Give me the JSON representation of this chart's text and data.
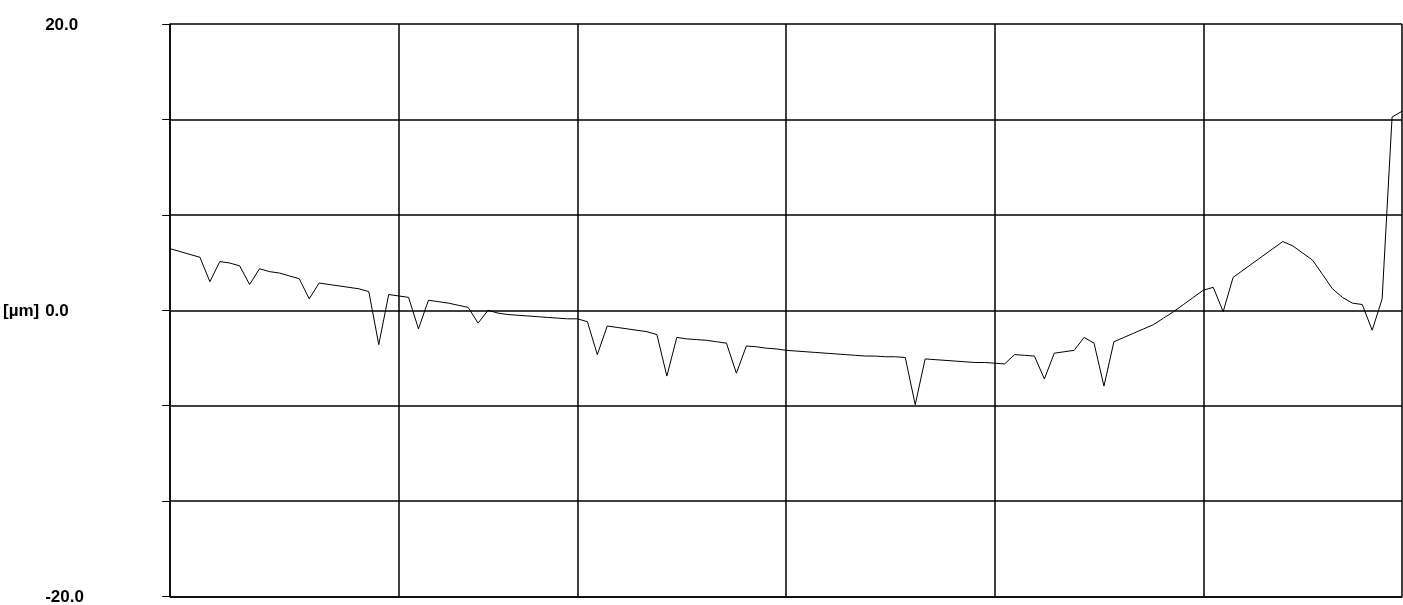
{
  "chart_data": {
    "type": "line",
    "ylabel": "[µm]",
    "grid": true,
    "marker": "none",
    "line_style": "solid",
    "tick_labels": "y",
    "categories": [
      null,
      null,
      null,
      null,
      null,
      null,
      null,
      null,
      null,
      null,
      null,
      null,
      null,
      null,
      null,
      null,
      null,
      null,
      null,
      null,
      null,
      null,
      null,
      null,
      null,
      null,
      null,
      null,
      null,
      null,
      null,
      null,
      null,
      null,
      null,
      null,
      null,
      null,
      null,
      null,
      null,
      null,
      null,
      null,
      null,
      null,
      null,
      null,
      null,
      null,
      null,
      null,
      null,
      null,
      null,
      null,
      null,
      null,
      null,
      null,
      null,
      null,
      null,
      null,
      null,
      null,
      null,
      null,
      null,
      null,
      null,
      null,
      null,
      null,
      null,
      null,
      null,
      null,
      null,
      null,
      null,
      null,
      null,
      null,
      null,
      null,
      null,
      null,
      null,
      null,
      null,
      null,
      null,
      null,
      null,
      null,
      null,
      null,
      null,
      null,
      null,
      null,
      null,
      null,
      null,
      null,
      null,
      null,
      null,
      null,
      null,
      null,
      null,
      null,
      null,
      null,
      null,
      null,
      null,
      null,
      null,
      null,
      null,
      null,
      null
    ],
    "ylim": [
      -20,
      20
    ],
    "yticks": [
      {
        "value": -20,
        "label": "-20.0"
      },
      {
        "value": -13.33,
        "label": null
      },
      {
        "value": -6.67,
        "label": null
      },
      {
        "value": 0,
        "label": "0.0"
      },
      {
        "value": 6.67,
        "label": null
      },
      {
        "value": 13.33,
        "label": null
      },
      {
        "value": 20,
        "label": "20.0"
      }
    ],
    "series": [
      {
        "color": "#000000",
        "values": [
          4.3,
          4.1,
          3.9,
          3.7,
          2.0,
          3.4,
          3.3,
          3.1,
          1.8,
          2.9,
          2.7,
          2.6,
          2.4,
          2.2,
          0.8,
          1.9,
          1.8,
          1.7,
          1.6,
          1.5,
          1.3,
          -2.4,
          1.1,
          1.0,
          0.9,
          -1.3,
          0.7,
          0.6,
          0.5,
          0.35,
          0.2,
          -0.9,
          0.0,
          -0.2,
          -0.3,
          -0.35,
          -0.4,
          -0.45,
          -0.5,
          -0.55,
          -0.6,
          -0.6,
          -0.8,
          -3.1,
          -1.1,
          -1.2,
          -1.3,
          -1.4,
          -1.5,
          -1.7,
          -4.6,
          -1.9,
          -2.0,
          -2.05,
          -2.1,
          -2.2,
          -2.3,
          -4.4,
          -2.5,
          -2.55,
          -2.65,
          -2.7,
          -2.8,
          -2.85,
          -2.9,
          -2.95,
          -3.0,
          -3.05,
          -3.1,
          -3.15,
          -3.2,
          -3.2,
          -3.25,
          -3.25,
          -3.3,
          -6.6,
          -3.4,
          -3.45,
          -3.5,
          -3.55,
          -3.6,
          -3.65,
          -3.65,
          -3.7,
          -3.75,
          -3.1,
          -3.15,
          -3.2,
          -4.8,
          -3.0,
          -2.9,
          -2.8,
          -1.9,
          -2.3,
          -5.3,
          -2.2,
          -1.9,
          -1.6,
          -1.3,
          -1.0,
          -0.55,
          -0.1,
          0.4,
          0.9,
          1.4,
          1.6,
          -0.1,
          2.3,
          2.8,
          3.3,
          3.8,
          4.3,
          4.8,
          4.5,
          4.0,
          3.5,
          2.5,
          1.5,
          0.9,
          0.5,
          0.4,
          -1.4,
          0.8,
          13.5,
          13.9
        ]
      }
    ]
  }
}
